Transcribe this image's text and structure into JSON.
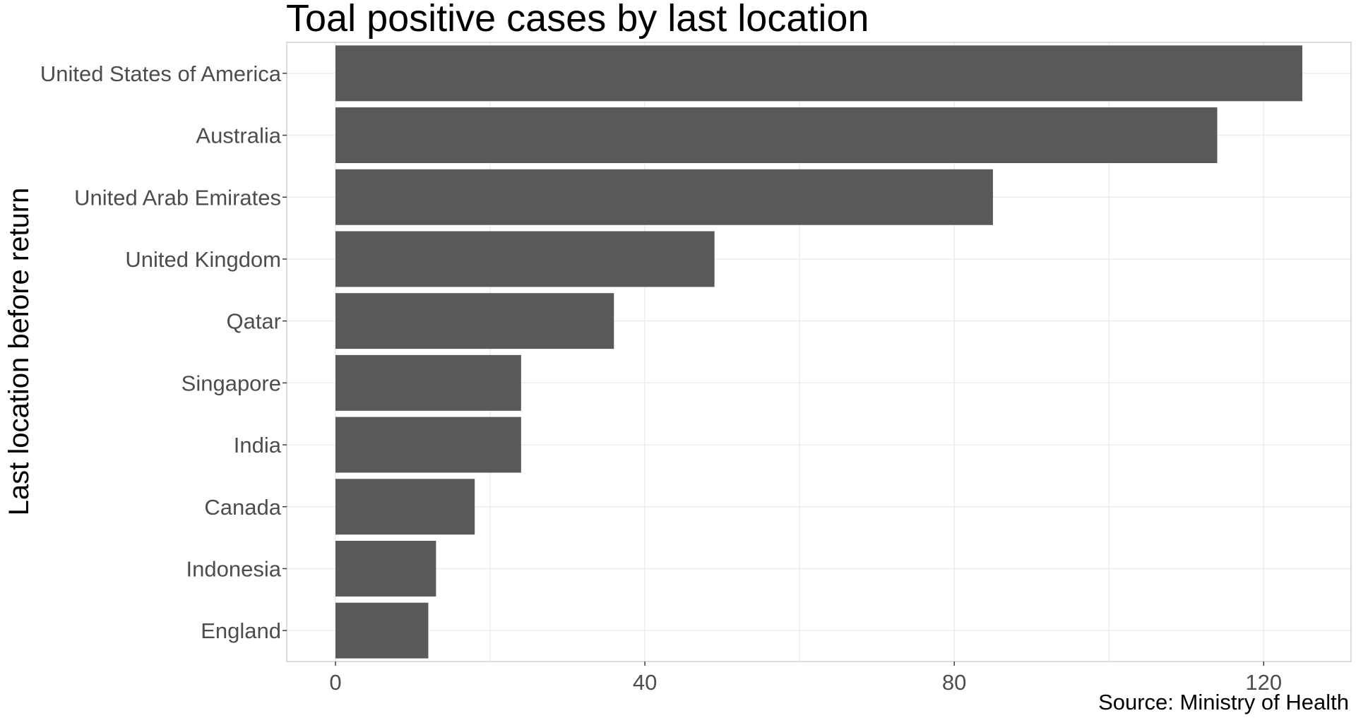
{
  "chart_data": {
    "type": "bar",
    "orientation": "horizontal",
    "title": "Toal positive cases by last location",
    "xlabel": "",
    "ylabel": "Last location before return",
    "caption": "Source: Ministry of Health",
    "categories": [
      "United States of America",
      "Australia",
      "United Arab Emirates",
      "United Kingdom",
      "Qatar",
      "Singapore",
      "India",
      "Canada",
      "Indonesia",
      "England"
    ],
    "values": [
      125,
      114,
      85,
      49,
      36,
      24,
      24,
      18,
      13,
      12
    ],
    "xlim": [
      -6.3,
      131.3
    ],
    "x_ticks": [
      0,
      40,
      80,
      120
    ],
    "x_minor_ticks": [
      20,
      60,
      100
    ],
    "grid": true,
    "legend": "none",
    "bar_color": "#595959"
  }
}
